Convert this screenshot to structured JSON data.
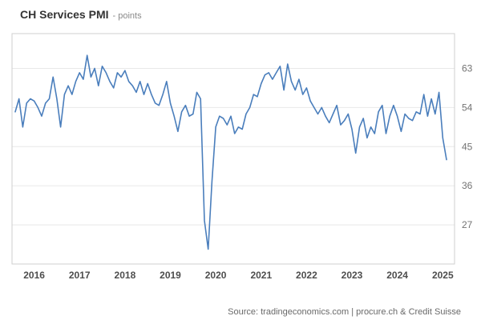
{
  "header": {
    "title": "CH Services PMI",
    "subtitle": "- points"
  },
  "footer": {
    "prefix": "Source: ",
    "link": "tradingeconomics.com",
    "suffix": " | procure.ch & Credit Suisse"
  },
  "chart_data": {
    "type": "line",
    "title": "CH Services PMI",
    "unit": "points",
    "frequency": "monthly",
    "start": "2016-01",
    "end": "2025-07",
    "x_tick_labels": [
      "2016",
      "2017",
      "2018",
      "2019",
      "2020",
      "2021",
      "2022",
      "2023",
      "2024",
      "2025"
    ],
    "y_ticks": [
      27,
      36,
      45,
      54,
      63
    ],
    "ylim": [
      18,
      71
    ],
    "grid": "horizontal",
    "legend": "none",
    "colors": {
      "line": "#4a7ebc",
      "grid": "#e8e8e8",
      "border": "#cfcfcf",
      "tick_text": "#737373"
    },
    "series": [
      {
        "name": "CH Services PMI",
        "color": "#4a7ebc",
        "values": [
          53,
          56,
          49.5,
          55,
          56,
          55.5,
          54,
          52,
          55,
          56,
          61,
          56,
          49.5,
          57,
          59,
          57,
          60,
          62,
          60.5,
          66,
          61,
          63,
          59,
          63.5,
          62,
          60,
          58.5,
          62,
          61,
          62.5,
          60,
          59,
          57.5,
          60,
          57,
          59.5,
          57,
          55,
          54.5,
          57,
          60,
          55,
          52,
          48.5,
          53,
          54.5,
          52,
          52.5,
          57.5,
          56,
          28,
          21.4,
          37,
          49.5,
          52,
          51.5,
          50,
          52,
          48,
          49.5,
          49,
          52.5,
          54,
          57,
          56.5,
          59.5,
          61.5,
          62,
          60.5,
          62,
          63.5,
          58,
          64,
          60,
          58,
          60.5,
          57,
          58.5,
          55.5,
          54,
          52.5,
          54,
          52,
          50.5,
          52.5,
          54.5,
          50,
          51,
          52.5,
          49,
          43.5,
          49.5,
          51.5,
          47,
          49.5,
          48,
          53,
          54.5,
          48,
          52,
          54.5,
          52,
          48.5,
          52.5,
          51.5,
          51,
          53,
          52.5,
          57,
          52,
          56,
          52.5,
          57.5,
          47,
          42
        ]
      }
    ]
  }
}
